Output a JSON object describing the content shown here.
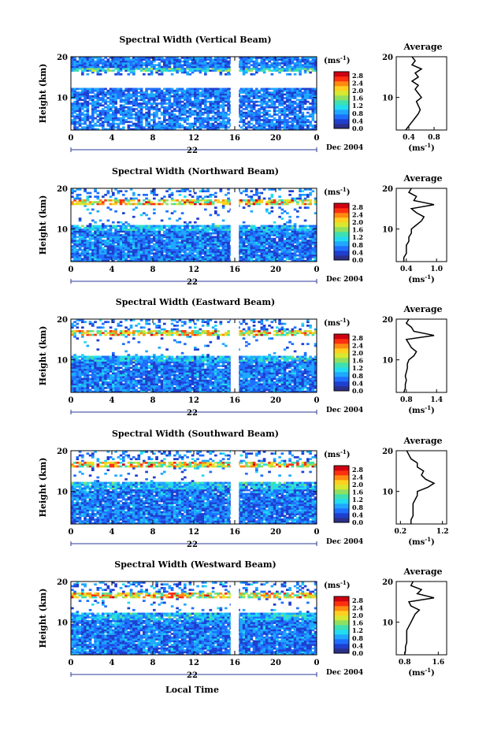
{
  "figure": {
    "xlabel": "Local Time",
    "date_label": "Dec 2004",
    "day_label": "22",
    "ylabel": "Height (km)",
    "colorbar_unit": "(ms",
    "colorbar_unit_sup": "-1",
    "colorbar_unit_close": ")",
    "avg_title": "Average",
    "avg_xunit": "(ms",
    "avg_xunit_sup": "-1",
    "avg_xunit_close": ")"
  },
  "colorbar": {
    "ticks": [
      "2.8",
      "2.4",
      "2.0",
      "1.6",
      "1.2",
      "0.8",
      "0.4",
      "0.0"
    ],
    "values": [
      2.8,
      2.4,
      2.0,
      1.6,
      1.2,
      0.8,
      0.4,
      0.0
    ],
    "range": [
      0.0,
      3.0
    ],
    "colors": [
      "#2b2f8a",
      "#1f3fcf",
      "#1f6fff",
      "#1fa8ff",
      "#22dcef",
      "#3fe0b0",
      "#8fe060",
      "#d8e830",
      "#ffd020",
      "#ff8a10",
      "#ff3010",
      "#d00010"
    ]
  },
  "chart_data": [
    {
      "type": "heatmap",
      "title": "Spectral Width (Vertical Beam)",
      "x_ticks": [
        "0",
        "4",
        "8",
        "12",
        "16",
        "20",
        "0"
      ],
      "xlim": [
        0,
        24
      ],
      "y_ticks": [
        "20",
        "10"
      ],
      "ylim": [
        2,
        20
      ],
      "colorbar_range": [
        0.0,
        3.0
      ],
      "data_gap_hours": [
        15.6,
        16.4
      ],
      "average_profile": {
        "x_ticks": [
          "0.4",
          "0.8"
        ],
        "xlim": [
          0.2,
          1.0
        ],
        "y_ticks": [
          "20",
          "10"
        ],
        "height_km": [
          2,
          3,
          4,
          5,
          6,
          7,
          8,
          9,
          10,
          11,
          12,
          13,
          14,
          15,
          16,
          17,
          18,
          19,
          20
        ],
        "values": [
          0.35,
          0.4,
          0.45,
          0.5,
          0.55,
          0.58,
          0.55,
          0.52,
          0.6,
          0.55,
          0.5,
          0.55,
          0.45,
          0.55,
          0.5,
          0.6,
          0.45,
          0.5,
          0.45
        ]
      }
    },
    {
      "type": "heatmap",
      "title": "Spectral Width (Northward Beam)",
      "x_ticks": [
        "0",
        "4",
        "8",
        "12",
        "16",
        "20",
        "0"
      ],
      "xlim": [
        0,
        24
      ],
      "y_ticks": [
        "20",
        "10"
      ],
      "ylim": [
        2,
        20
      ],
      "colorbar_range": [
        0.0,
        3.0
      ],
      "data_gap_hours": [
        15.6,
        16.4
      ],
      "average_profile": {
        "x_ticks": [
          "0.4",
          "1.0"
        ],
        "xlim": [
          0.2,
          1.2
        ],
        "y_ticks": [
          "20",
          "10"
        ],
        "height_km": [
          2,
          3,
          4,
          5,
          6,
          7,
          8,
          9,
          10,
          11,
          12,
          13,
          14,
          15,
          16,
          17,
          18,
          19,
          20
        ],
        "values": [
          0.35,
          0.35,
          0.4,
          0.4,
          0.4,
          0.45,
          0.45,
          0.5,
          0.5,
          0.6,
          0.7,
          0.75,
          0.6,
          0.5,
          0.95,
          0.55,
          0.6,
          0.45,
          0.5
        ]
      }
    },
    {
      "type": "heatmap",
      "title": "Spectral Width (Eastward Beam)",
      "x_ticks": [
        "0",
        "4",
        "8",
        "12",
        "16",
        "20",
        "0"
      ],
      "xlim": [
        0,
        24
      ],
      "y_ticks": [
        "20",
        "10"
      ],
      "ylim": [
        2,
        20
      ],
      "colorbar_range": [
        0.0,
        3.0
      ],
      "data_gap_hours": [
        15.6,
        16.4
      ],
      "average_profile": {
        "x_ticks": [
          "0.8",
          "1.4"
        ],
        "xlim": [
          0.6,
          1.6
        ],
        "y_ticks": [
          "20",
          "10"
        ],
        "height_km": [
          2,
          3,
          4,
          5,
          6,
          7,
          8,
          9,
          10,
          11,
          12,
          13,
          14,
          15,
          16,
          17,
          18,
          19,
          20
        ],
        "values": [
          0.75,
          0.78,
          0.78,
          0.8,
          0.78,
          0.8,
          0.82,
          0.82,
          0.85,
          0.95,
          1.0,
          0.9,
          0.85,
          0.8,
          1.35,
          0.95,
          0.9,
          0.8,
          0.85
        ]
      }
    },
    {
      "type": "heatmap",
      "title": "Spectral Width (Southward Beam)",
      "x_ticks": [
        "0",
        "4",
        "8",
        "12",
        "16",
        "20",
        "0"
      ],
      "xlim": [
        0,
        24
      ],
      "y_ticks": [
        "20",
        "10"
      ],
      "ylim": [
        2,
        20
      ],
      "colorbar_range": [
        0.0,
        3.0
      ],
      "data_gap_hours": [
        15.6,
        16.4
      ],
      "average_profile": {
        "x_ticks": [
          "0.2",
          "1.2"
        ],
        "xlim": [
          0.1,
          1.3
        ],
        "y_ticks": [
          "20",
          "10"
        ],
        "height_km": [
          2,
          3,
          4,
          5,
          6,
          7,
          8,
          9,
          10,
          11,
          12,
          13,
          14,
          15,
          16,
          17,
          18,
          19,
          20
        ],
        "values": [
          0.45,
          0.45,
          0.5,
          0.5,
          0.5,
          0.5,
          0.55,
          0.6,
          0.6,
          0.85,
          1.0,
          0.8,
          0.7,
          0.75,
          0.6,
          0.6,
          0.45,
          0.4,
          0.35
        ]
      }
    },
    {
      "type": "heatmap",
      "title": "Spectral Width (Westward Beam)",
      "x_ticks": [
        "0",
        "4",
        "8",
        "12",
        "16",
        "20",
        "0"
      ],
      "xlim": [
        0,
        24
      ],
      "y_ticks": [
        "20",
        "10"
      ],
      "ylim": [
        2,
        20
      ],
      "colorbar_range": [
        0.0,
        3.0
      ],
      "data_gap_hours": [
        15.6,
        16.4
      ],
      "average_profile": {
        "x_ticks": [
          "0.8",
          "1.6"
        ],
        "xlim": [
          0.6,
          1.8
        ],
        "y_ticks": [
          "20",
          "10"
        ],
        "height_km": [
          2,
          3,
          4,
          5,
          6,
          7,
          8,
          9,
          10,
          11,
          12,
          13,
          14,
          15,
          16,
          17,
          18,
          19,
          20
        ],
        "values": [
          0.8,
          0.82,
          0.82,
          0.85,
          0.85,
          0.85,
          0.85,
          0.9,
          0.95,
          1.0,
          1.05,
          1.15,
          0.95,
          0.9,
          1.5,
          1.1,
          1.2,
          0.95,
          1.0
        ]
      }
    }
  ]
}
